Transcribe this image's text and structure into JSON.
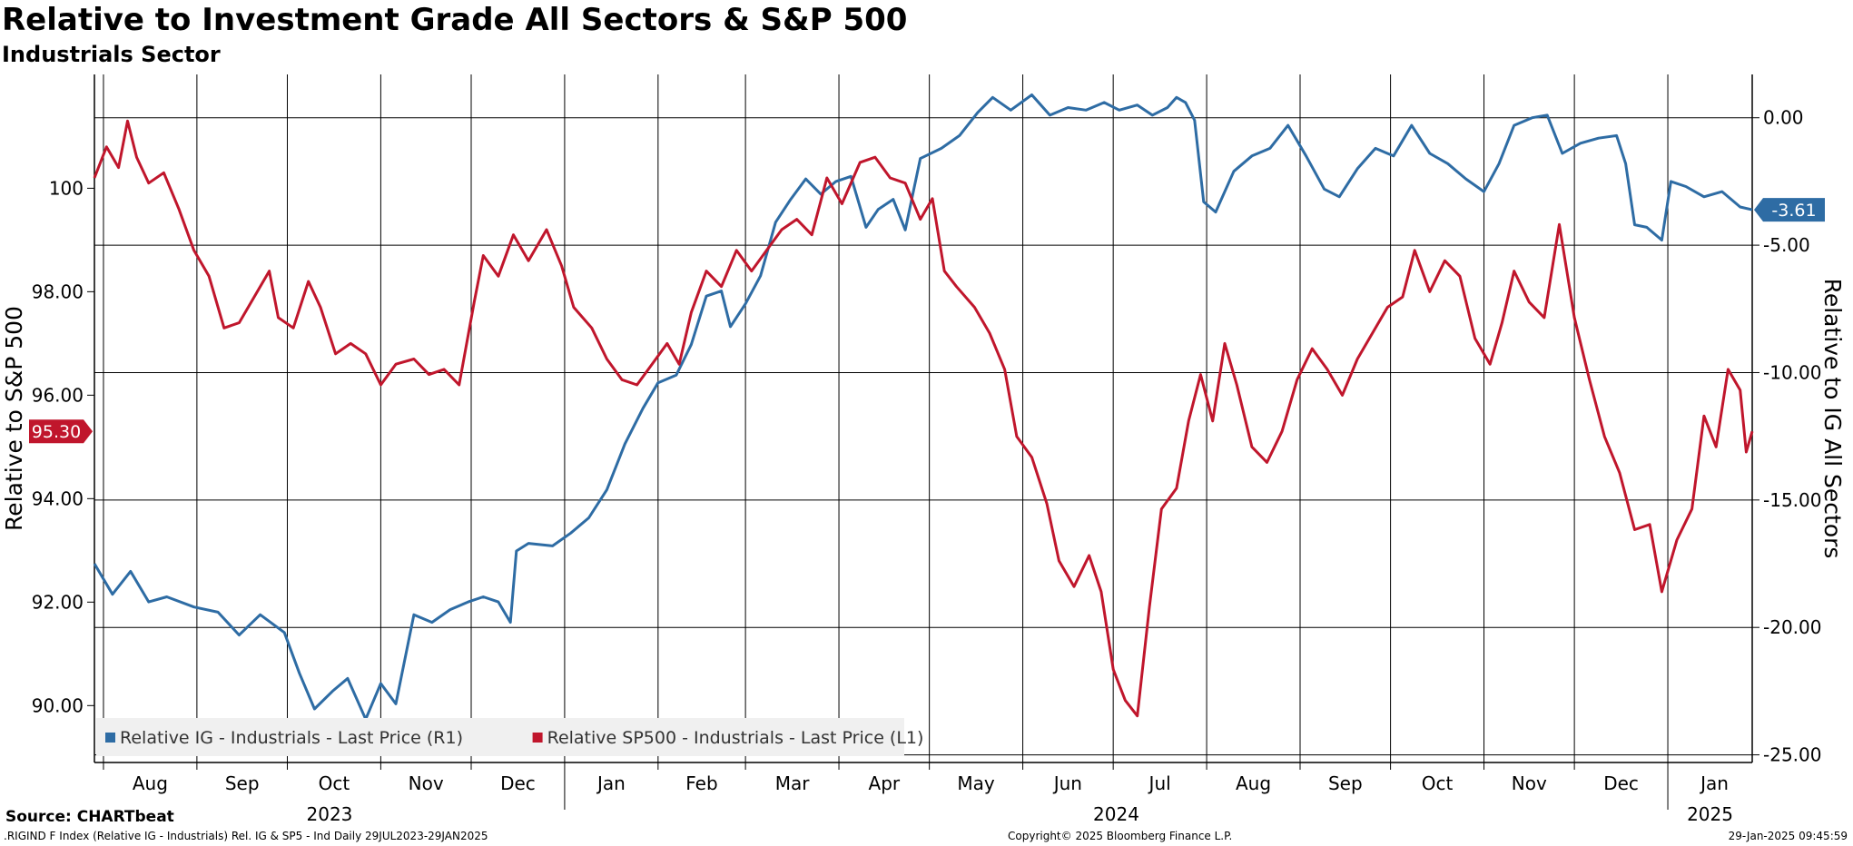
{
  "title": "Relative to Investment Grade All Sectors & S&P 500",
  "subtitle": "Industrials Sector",
  "footer": {
    "source": "Source: CHARTbeat",
    "description": ".RIGIND F Index (Relative IG - Industrials) Rel. IG & SP5 - Ind  Daily 29JUL2023-29JAN2025",
    "copyright": "Copyright© 2025 Bloomberg Finance L.P.",
    "timestamp": "29-Jan-2025 09:45:59"
  },
  "chart_data": {
    "type": "line",
    "x_range": [
      "2023-07-29",
      "2025-01-29"
    ],
    "months": [
      {
        "label": "Aug",
        "start": "2023-08-01"
      },
      {
        "label": "Sep",
        "start": "2023-09-01"
      },
      {
        "label": "Oct",
        "start": "2023-10-01"
      },
      {
        "label": "Nov",
        "start": "2023-11-01"
      },
      {
        "label": "Dec",
        "start": "2023-12-01"
      },
      {
        "label": "Jan",
        "start": "2024-01-01"
      },
      {
        "label": "Feb",
        "start": "2024-02-01"
      },
      {
        "label": "Mar",
        "start": "2024-03-01"
      },
      {
        "label": "Apr",
        "start": "2024-04-01"
      },
      {
        "label": "May",
        "start": "2024-05-01"
      },
      {
        "label": "Jun",
        "start": "2024-06-01"
      },
      {
        "label": "Jul",
        "start": "2024-07-01"
      },
      {
        "label": "Aug",
        "start": "2024-08-01"
      },
      {
        "label": "Sep",
        "start": "2024-09-01"
      },
      {
        "label": "Oct",
        "start": "2024-10-01"
      },
      {
        "label": "Nov",
        "start": "2024-11-01"
      },
      {
        "label": "Dec",
        "start": "2024-12-01"
      },
      {
        "label": "Jan",
        "start": "2025-01-01"
      },
      {
        "label": "",
        "start": "2025-02-01"
      }
    ],
    "years": [
      {
        "label": "2023",
        "start": "2023-07-29",
        "end": "2024-01-01"
      },
      {
        "label": "2024",
        "start": "2024-01-01",
        "end": "2025-01-01"
      },
      {
        "label": "2025",
        "start": "2025-01-01",
        "end": "2025-01-29"
      }
    ],
    "left_axis": {
      "label": "Relative to S&P 500",
      "range": [
        88.9,
        102.2
      ],
      "ticks": [
        90,
        92,
        94,
        96,
        98,
        100
      ],
      "tick_labels": [
        "90.00",
        "92.00",
        "94.00",
        "96.00",
        "98.00",
        "100"
      ]
    },
    "right_axis": {
      "label": "Relative to IG All Sectors",
      "range": [
        -25.3,
        1.7
      ],
      "ticks": [
        -25,
        -20,
        -15,
        -10,
        -5,
        0
      ],
      "tick_labels": [
        "-25.00",
        "-20.00",
        "-15.00",
        "-10.00",
        "-5.00",
        "0.00"
      ]
    },
    "series": [
      {
        "name": "Relative IG - Industrials - Last Price (R1)",
        "axis": "right",
        "color": "#2e6ca4",
        "last_label": "-3.61",
        "points": [
          [
            "2023-07-29",
            -17.5
          ],
          [
            "2023-08-04",
            -18.7
          ],
          [
            "2023-08-10",
            -17.8
          ],
          [
            "2023-08-16",
            -19.0
          ],
          [
            "2023-08-22",
            -18.8
          ],
          [
            "2023-08-31",
            -19.2
          ],
          [
            "2023-09-08",
            -19.4
          ],
          [
            "2023-09-15",
            -20.3
          ],
          [
            "2023-09-22",
            -19.5
          ],
          [
            "2023-09-30",
            -20.2
          ],
          [
            "2023-10-05",
            -21.8
          ],
          [
            "2023-10-10",
            -23.2
          ],
          [
            "2023-10-16",
            -22.5
          ],
          [
            "2023-10-21",
            -22.0
          ],
          [
            "2023-10-27",
            -23.6
          ],
          [
            "2023-11-01",
            -22.2
          ],
          [
            "2023-11-06",
            -23.0
          ],
          [
            "2023-11-12",
            -19.5
          ],
          [
            "2023-11-18",
            -19.8
          ],
          [
            "2023-11-24",
            -19.3
          ],
          [
            "2023-11-30",
            -19.0
          ],
          [
            "2023-12-05",
            -18.8
          ],
          [
            "2023-12-10",
            -19.0
          ],
          [
            "2023-12-14",
            -19.8
          ],
          [
            "2023-12-16",
            -17.0
          ],
          [
            "2023-12-20",
            -16.7
          ],
          [
            "2023-12-28",
            -16.8
          ],
          [
            "2024-01-03",
            -16.3
          ],
          [
            "2024-01-09",
            -15.7
          ],
          [
            "2024-01-15",
            -14.6
          ],
          [
            "2024-01-21",
            -12.8
          ],
          [
            "2024-01-27",
            -11.4
          ],
          [
            "2024-02-01",
            -10.4
          ],
          [
            "2024-02-07",
            -10.1
          ],
          [
            "2024-02-12",
            -8.9
          ],
          [
            "2024-02-17",
            -7.0
          ],
          [
            "2024-02-22",
            -6.8
          ],
          [
            "2024-02-25",
            -8.2
          ],
          [
            "2024-03-01",
            -7.3
          ],
          [
            "2024-03-06",
            -6.2
          ],
          [
            "2024-03-11",
            -4.1
          ],
          [
            "2024-03-16",
            -3.2
          ],
          [
            "2024-03-21",
            -2.4
          ],
          [
            "2024-03-26",
            -3.0
          ],
          [
            "2024-03-31",
            -2.5
          ],
          [
            "2024-04-05",
            -2.3
          ],
          [
            "2024-04-10",
            -4.3
          ],
          [
            "2024-04-14",
            -3.6
          ],
          [
            "2024-04-19",
            -3.2
          ],
          [
            "2024-04-23",
            -4.4
          ],
          [
            "2024-04-28",
            -1.6
          ],
          [
            "2024-05-05",
            -1.2
          ],
          [
            "2024-05-11",
            -0.7
          ],
          [
            "2024-05-17",
            0.2
          ],
          [
            "2024-05-22",
            0.8
          ],
          [
            "2024-05-28",
            0.3
          ],
          [
            "2024-06-04",
            0.9
          ],
          [
            "2024-06-10",
            0.1
          ],
          [
            "2024-06-16",
            0.4
          ],
          [
            "2024-06-22",
            0.3
          ],
          [
            "2024-06-28",
            0.6
          ],
          [
            "2024-07-03",
            0.3
          ],
          [
            "2024-07-09",
            0.5
          ],
          [
            "2024-07-14",
            0.1
          ],
          [
            "2024-07-19",
            0.4
          ],
          [
            "2024-07-22",
            0.8
          ],
          [
            "2024-07-25",
            0.6
          ],
          [
            "2024-07-28",
            -0.1
          ],
          [
            "2024-07-31",
            -3.3
          ],
          [
            "2024-08-04",
            -3.7
          ],
          [
            "2024-08-10",
            -2.1
          ],
          [
            "2024-08-16",
            -1.5
          ],
          [
            "2024-08-22",
            -1.2
          ],
          [
            "2024-08-28",
            -0.3
          ],
          [
            "2024-09-03",
            -1.5
          ],
          [
            "2024-09-09",
            -2.8
          ],
          [
            "2024-09-14",
            -3.1
          ],
          [
            "2024-09-20",
            -2.0
          ],
          [
            "2024-09-26",
            -1.2
          ],
          [
            "2024-10-02",
            -1.5
          ],
          [
            "2024-10-08",
            -0.3
          ],
          [
            "2024-10-14",
            -1.4
          ],
          [
            "2024-10-20",
            -1.8
          ],
          [
            "2024-10-26",
            -2.4
          ],
          [
            "2024-11-01",
            -2.9
          ],
          [
            "2024-11-06",
            -1.8
          ],
          [
            "2024-11-11",
            -0.3
          ],
          [
            "2024-11-17",
            0.0
          ],
          [
            "2024-11-22",
            0.1
          ],
          [
            "2024-11-27",
            -1.4
          ],
          [
            "2024-12-03",
            -1.0
          ],
          [
            "2024-12-09",
            -0.8
          ],
          [
            "2024-12-15",
            -0.7
          ],
          [
            "2024-12-18",
            -1.8
          ],
          [
            "2024-12-21",
            -4.2
          ],
          [
            "2024-12-25",
            -4.3
          ],
          [
            "2024-12-30",
            -4.8
          ],
          [
            "2025-01-02",
            -2.5
          ],
          [
            "2025-01-07",
            -2.7
          ],
          [
            "2025-01-13",
            -3.1
          ],
          [
            "2025-01-19",
            -2.9
          ],
          [
            "2025-01-25",
            -3.5
          ],
          [
            "2025-01-29",
            -3.61
          ]
        ]
      },
      {
        "name": "Relative SP500 - Industrials - Last Price (L1)",
        "axis": "left",
        "color": "#c0162c",
        "last_label": "95.30",
        "points": [
          [
            "2023-07-29",
            100.2
          ],
          [
            "2023-08-02",
            100.8
          ],
          [
            "2023-08-06",
            100.4
          ],
          [
            "2023-08-09",
            101.3
          ],
          [
            "2023-08-12",
            100.6
          ],
          [
            "2023-08-16",
            100.1
          ],
          [
            "2023-08-21",
            100.3
          ],
          [
            "2023-08-26",
            99.6
          ],
          [
            "2023-08-31",
            98.8
          ],
          [
            "2023-09-05",
            98.3
          ],
          [
            "2023-09-10",
            97.3
          ],
          [
            "2023-09-15",
            97.4
          ],
          [
            "2023-09-20",
            97.9
          ],
          [
            "2023-09-25",
            98.4
          ],
          [
            "2023-09-28",
            97.5
          ],
          [
            "2023-10-03",
            97.3
          ],
          [
            "2023-10-08",
            98.2
          ],
          [
            "2023-10-12",
            97.7
          ],
          [
            "2023-10-17",
            96.8
          ],
          [
            "2023-10-22",
            97.0
          ],
          [
            "2023-10-27",
            96.8
          ],
          [
            "2023-11-01",
            96.2
          ],
          [
            "2023-11-06",
            96.6
          ],
          [
            "2023-11-12",
            96.7
          ],
          [
            "2023-11-17",
            96.4
          ],
          [
            "2023-11-22",
            96.5
          ],
          [
            "2023-11-27",
            96.2
          ],
          [
            "2023-12-02",
            97.8
          ],
          [
            "2023-12-05",
            98.7
          ],
          [
            "2023-12-10",
            98.3
          ],
          [
            "2023-12-15",
            99.1
          ],
          [
            "2023-12-20",
            98.6
          ],
          [
            "2023-12-26",
            99.2
          ],
          [
            "2023-12-31",
            98.5
          ],
          [
            "2024-01-04",
            97.7
          ],
          [
            "2024-01-10",
            97.3
          ],
          [
            "2024-01-15",
            96.7
          ],
          [
            "2024-01-20",
            96.3
          ],
          [
            "2024-01-25",
            96.2
          ],
          [
            "2024-01-30",
            96.6
          ],
          [
            "2024-02-04",
            97.0
          ],
          [
            "2024-02-08",
            96.6
          ],
          [
            "2024-02-12",
            97.6
          ],
          [
            "2024-02-17",
            98.4
          ],
          [
            "2024-02-22",
            98.1
          ],
          [
            "2024-02-27",
            98.8
          ],
          [
            "2024-03-03",
            98.4
          ],
          [
            "2024-03-08",
            98.8
          ],
          [
            "2024-03-13",
            99.2
          ],
          [
            "2024-03-18",
            99.4
          ],
          [
            "2024-03-23",
            99.1
          ],
          [
            "2024-03-28",
            100.2
          ],
          [
            "2024-04-02",
            99.7
          ],
          [
            "2024-04-08",
            100.5
          ],
          [
            "2024-04-13",
            100.6
          ],
          [
            "2024-04-18",
            100.2
          ],
          [
            "2024-04-23",
            100.1
          ],
          [
            "2024-04-28",
            99.4
          ],
          [
            "2024-05-02",
            99.8
          ],
          [
            "2024-05-06",
            98.4
          ],
          [
            "2024-05-10",
            98.1
          ],
          [
            "2024-05-16",
            97.7
          ],
          [
            "2024-05-21",
            97.2
          ],
          [
            "2024-05-26",
            96.5
          ],
          [
            "2024-05-30",
            95.2
          ],
          [
            "2024-06-04",
            94.8
          ],
          [
            "2024-06-09",
            93.9
          ],
          [
            "2024-06-13",
            92.8
          ],
          [
            "2024-06-18",
            92.3
          ],
          [
            "2024-06-23",
            92.9
          ],
          [
            "2024-06-27",
            92.2
          ],
          [
            "2024-07-01",
            90.7
          ],
          [
            "2024-07-05",
            90.1
          ],
          [
            "2024-07-09",
            89.8
          ],
          [
            "2024-07-13",
            91.9
          ],
          [
            "2024-07-17",
            93.8
          ],
          [
            "2024-07-22",
            94.2
          ],
          [
            "2024-07-26",
            95.5
          ],
          [
            "2024-07-30",
            96.4
          ],
          [
            "2024-08-03",
            95.5
          ],
          [
            "2024-08-07",
            97.0
          ],
          [
            "2024-08-11",
            96.2
          ],
          [
            "2024-08-16",
            95.0
          ],
          [
            "2024-08-21",
            94.7
          ],
          [
            "2024-08-26",
            95.3
          ],
          [
            "2024-08-31",
            96.3
          ],
          [
            "2024-09-05",
            96.9
          ],
          [
            "2024-09-10",
            96.5
          ],
          [
            "2024-09-15",
            96.0
          ],
          [
            "2024-09-20",
            96.7
          ],
          [
            "2024-09-25",
            97.2
          ],
          [
            "2024-09-30",
            97.7
          ],
          [
            "2024-10-05",
            97.9
          ],
          [
            "2024-10-09",
            98.8
          ],
          [
            "2024-10-14",
            98.0
          ],
          [
            "2024-10-19",
            98.6
          ],
          [
            "2024-10-24",
            98.3
          ],
          [
            "2024-10-29",
            97.1
          ],
          [
            "2024-11-03",
            96.6
          ],
          [
            "2024-11-07",
            97.4
          ],
          [
            "2024-11-11",
            98.4
          ],
          [
            "2024-11-16",
            97.8
          ],
          [
            "2024-11-21",
            97.5
          ],
          [
            "2024-11-26",
            99.3
          ],
          [
            "2024-12-01",
            97.5
          ],
          [
            "2024-12-06",
            96.3
          ],
          [
            "2024-12-11",
            95.2
          ],
          [
            "2024-12-16",
            94.5
          ],
          [
            "2024-12-21",
            93.4
          ],
          [
            "2024-12-26",
            93.5
          ],
          [
            "2024-12-30",
            92.2
          ],
          [
            "2025-01-04",
            93.2
          ],
          [
            "2025-01-09",
            93.8
          ],
          [
            "2025-01-13",
            95.6
          ],
          [
            "2025-01-17",
            95.0
          ],
          [
            "2025-01-21",
            96.5
          ],
          [
            "2025-01-25",
            96.1
          ],
          [
            "2025-01-27",
            94.9
          ],
          [
            "2025-01-29",
            95.3
          ]
        ]
      }
    ],
    "grid": true,
    "legend": "bottom-left"
  }
}
